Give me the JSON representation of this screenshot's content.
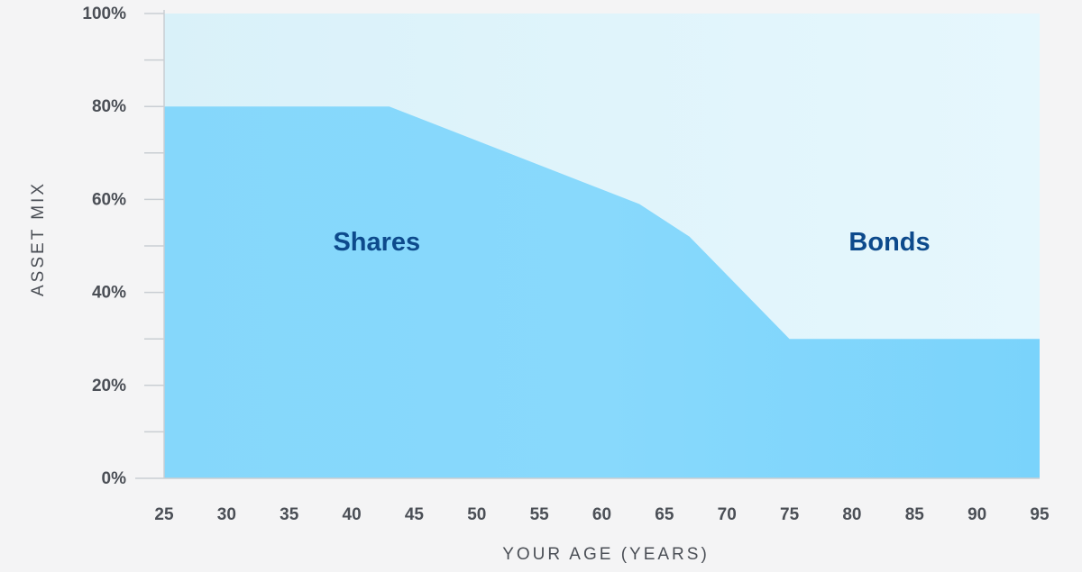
{
  "chart_data": {
    "type": "area",
    "xlabel": "YOUR AGE (YEARS)",
    "ylabel": "ASSET MIX",
    "xlim": [
      25,
      95
    ],
    "ylim": [
      0,
      100
    ],
    "x_ticks": [
      25,
      30,
      35,
      40,
      45,
      50,
      55,
      60,
      65,
      70,
      75,
      80,
      85,
      90,
      95
    ],
    "y_ticks": [
      0,
      20,
      40,
      60,
      80,
      100
    ],
    "y_tick_labels": [
      "0%",
      "20%",
      "40%",
      "60%",
      "80%",
      "100%"
    ],
    "series": [
      {
        "name": "Shares",
        "color": "#7fd4fb",
        "x": [
          25,
          43,
          63,
          67,
          75,
          95
        ],
        "y": [
          80,
          80,
          59,
          52,
          30,
          30
        ]
      },
      {
        "name": "Bonds",
        "color": "#dff4fb",
        "x": [
          25,
          43,
          63,
          67,
          75,
          95
        ],
        "y": [
          20,
          20,
          41,
          48,
          70,
          70
        ]
      }
    ],
    "annotations": [
      {
        "text": "Shares",
        "x": 42,
        "y": 51
      },
      {
        "text": "Bonds",
        "x": 83,
        "y": 51
      }
    ],
    "label_color": "#0d4a8c",
    "axis_text_color": "#4b4f56",
    "grid": false
  }
}
